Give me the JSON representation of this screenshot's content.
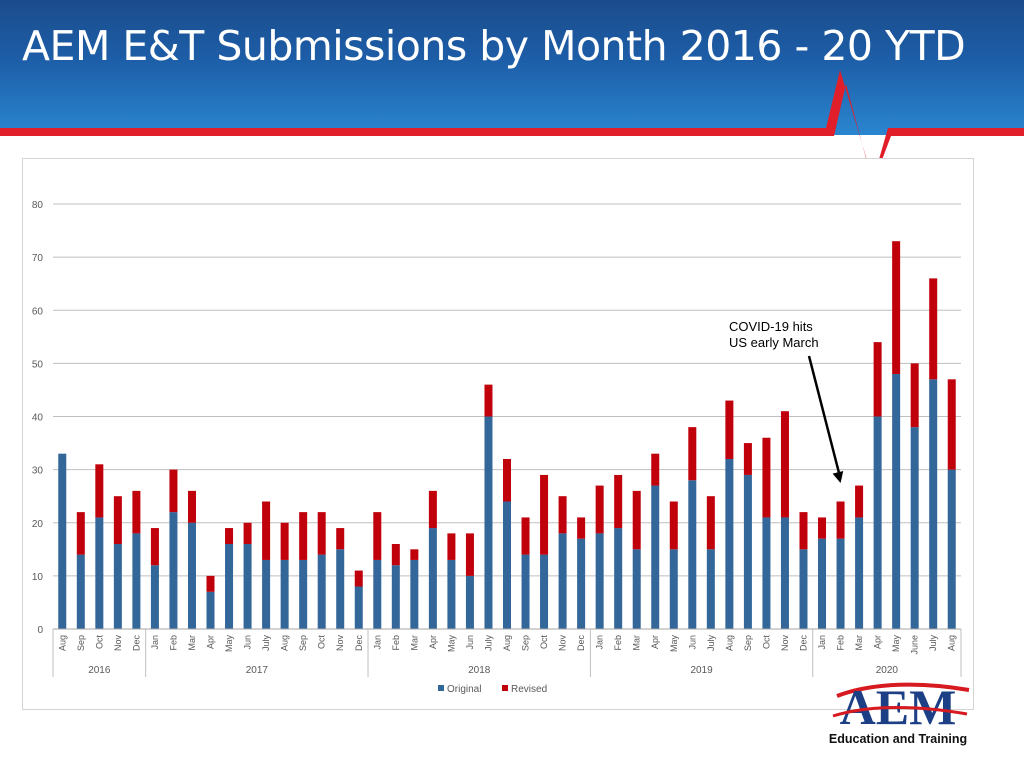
{
  "slide": {
    "title": "AEM E&T Submissions by Month 2016 - 20 YTD"
  },
  "logo": {
    "text": "AEM",
    "tagline": "Education and Training",
    "colors": {
      "letters": "#1d3f86",
      "swoosh": "#d71920"
    }
  },
  "colors": {
    "header_dark": "#1b4c8c",
    "header_light": "#2a86cf",
    "accent_line": "#e01f2b",
    "original": "#336699",
    "revised": "#c0000b",
    "gridline": "#bfbfbf",
    "text": "#595959"
  },
  "chart_data": {
    "type": "bar",
    "stacked": true,
    "title": "",
    "xlabel": "",
    "ylabel": "",
    "ylim": [
      0,
      80
    ],
    "yticks": [
      0,
      10,
      20,
      30,
      40,
      50,
      60,
      70,
      80
    ],
    "grid": true,
    "legend_position": "bottom",
    "categories": [
      "Aug",
      "Sep",
      "Oct",
      "Nov",
      "Dec",
      "Jan",
      "Feb",
      "Mar",
      "Apr",
      "May",
      "Jun",
      "July",
      "Aug",
      "Sep",
      "Oct",
      "Nov",
      "Dec",
      "Jan",
      "Feb",
      "Mar",
      "Apr",
      "May",
      "Jun",
      "July",
      "Aug",
      "Sep",
      "Oct",
      "Nov",
      "Dec",
      "Jan",
      "Feb",
      "Mar",
      "Apr",
      "May",
      "Jun",
      "July",
      "Aug",
      "Sep",
      "Oct",
      "Nov",
      "Dec",
      "Jan",
      "Feb",
      "Mar",
      "Apr",
      "May",
      "June",
      "July",
      "Aug"
    ],
    "groups": [
      {
        "label": "2016",
        "count": 5
      },
      {
        "label": "2017",
        "count": 12
      },
      {
        "label": "2018",
        "count": 12
      },
      {
        "label": "2019",
        "count": 12
      },
      {
        "label": "2020",
        "count": 8
      }
    ],
    "series": [
      {
        "name": "Original",
        "color": "#336699",
        "values": [
          33,
          14,
          21,
          16,
          18,
          12,
          22,
          20,
          7,
          16,
          16,
          13,
          13,
          13,
          14,
          15,
          8,
          13,
          12,
          13,
          19,
          13,
          10,
          40,
          24,
          14,
          14,
          18,
          17,
          18,
          19,
          15,
          27,
          15,
          28,
          15,
          32,
          29,
          21,
          21,
          15,
          17,
          17,
          21,
          40,
          48,
          38,
          47,
          30
        ]
      },
      {
        "name": "Revised",
        "color": "#c0000b",
        "values": [
          0,
          8,
          10,
          9,
          8,
          7,
          8,
          6,
          3,
          3,
          4,
          11,
          7,
          9,
          8,
          4,
          3,
          9,
          4,
          2,
          7,
          5,
          8,
          6,
          8,
          7,
          15,
          7,
          4,
          9,
          10,
          11,
          6,
          9,
          10,
          10,
          11,
          6,
          15,
          20,
          7,
          4,
          7,
          6,
          14,
          25,
          12,
          19,
          17
        ]
      }
    ],
    "annotations": [
      {
        "text_lines": [
          "COVID-19 hits",
          "US early March"
        ],
        "points_to_category_index": 42
      }
    ]
  }
}
